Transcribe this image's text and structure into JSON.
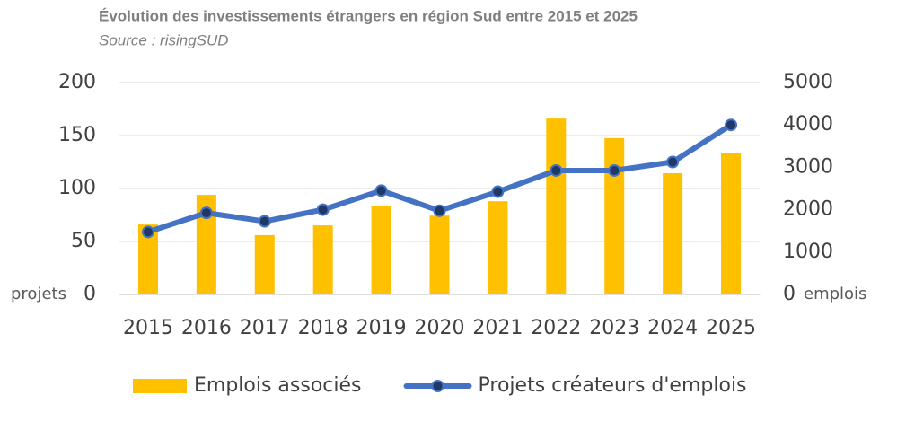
{
  "chart_data": {
    "type": "bar-line",
    "title": "Évolution des investissements étrangers en région Sud entre 2015 et 2025",
    "subtitle": "Source : risingSUD",
    "categories": [
      "2015",
      "2016",
      "2017",
      "2018",
      "2019",
      "2020",
      "2021",
      "2022",
      "2023",
      "2024",
      "2025"
    ],
    "series": [
      {
        "name": "Emplois associés",
        "type": "bar",
        "axis": "y2",
        "color": "#ffc000",
        "values": [
          1650,
          2350,
          1400,
          1630,
          2080,
          1860,
          2200,
          4150,
          3690,
          2860,
          3330
        ]
      },
      {
        "name": "Projets créateurs d'emplois",
        "type": "line",
        "color": "#4472c4",
        "marker_color": "#1f3864",
        "values": [
          59,
          77,
          69,
          80,
          98,
          79,
          97,
          117,
          117,
          125,
          160
        ]
      }
    ],
    "y_label": "projets",
    "y2_label": "emplois",
    "ylim": [
      0,
      200
    ],
    "yticks": [
      0,
      50,
      100,
      150,
      200
    ],
    "y2lim": [
      0,
      5000
    ],
    "y2ticks": [
      0,
      1000,
      2000,
      3000,
      4000,
      5000
    ],
    "grid": true,
    "legend": "bottom"
  }
}
